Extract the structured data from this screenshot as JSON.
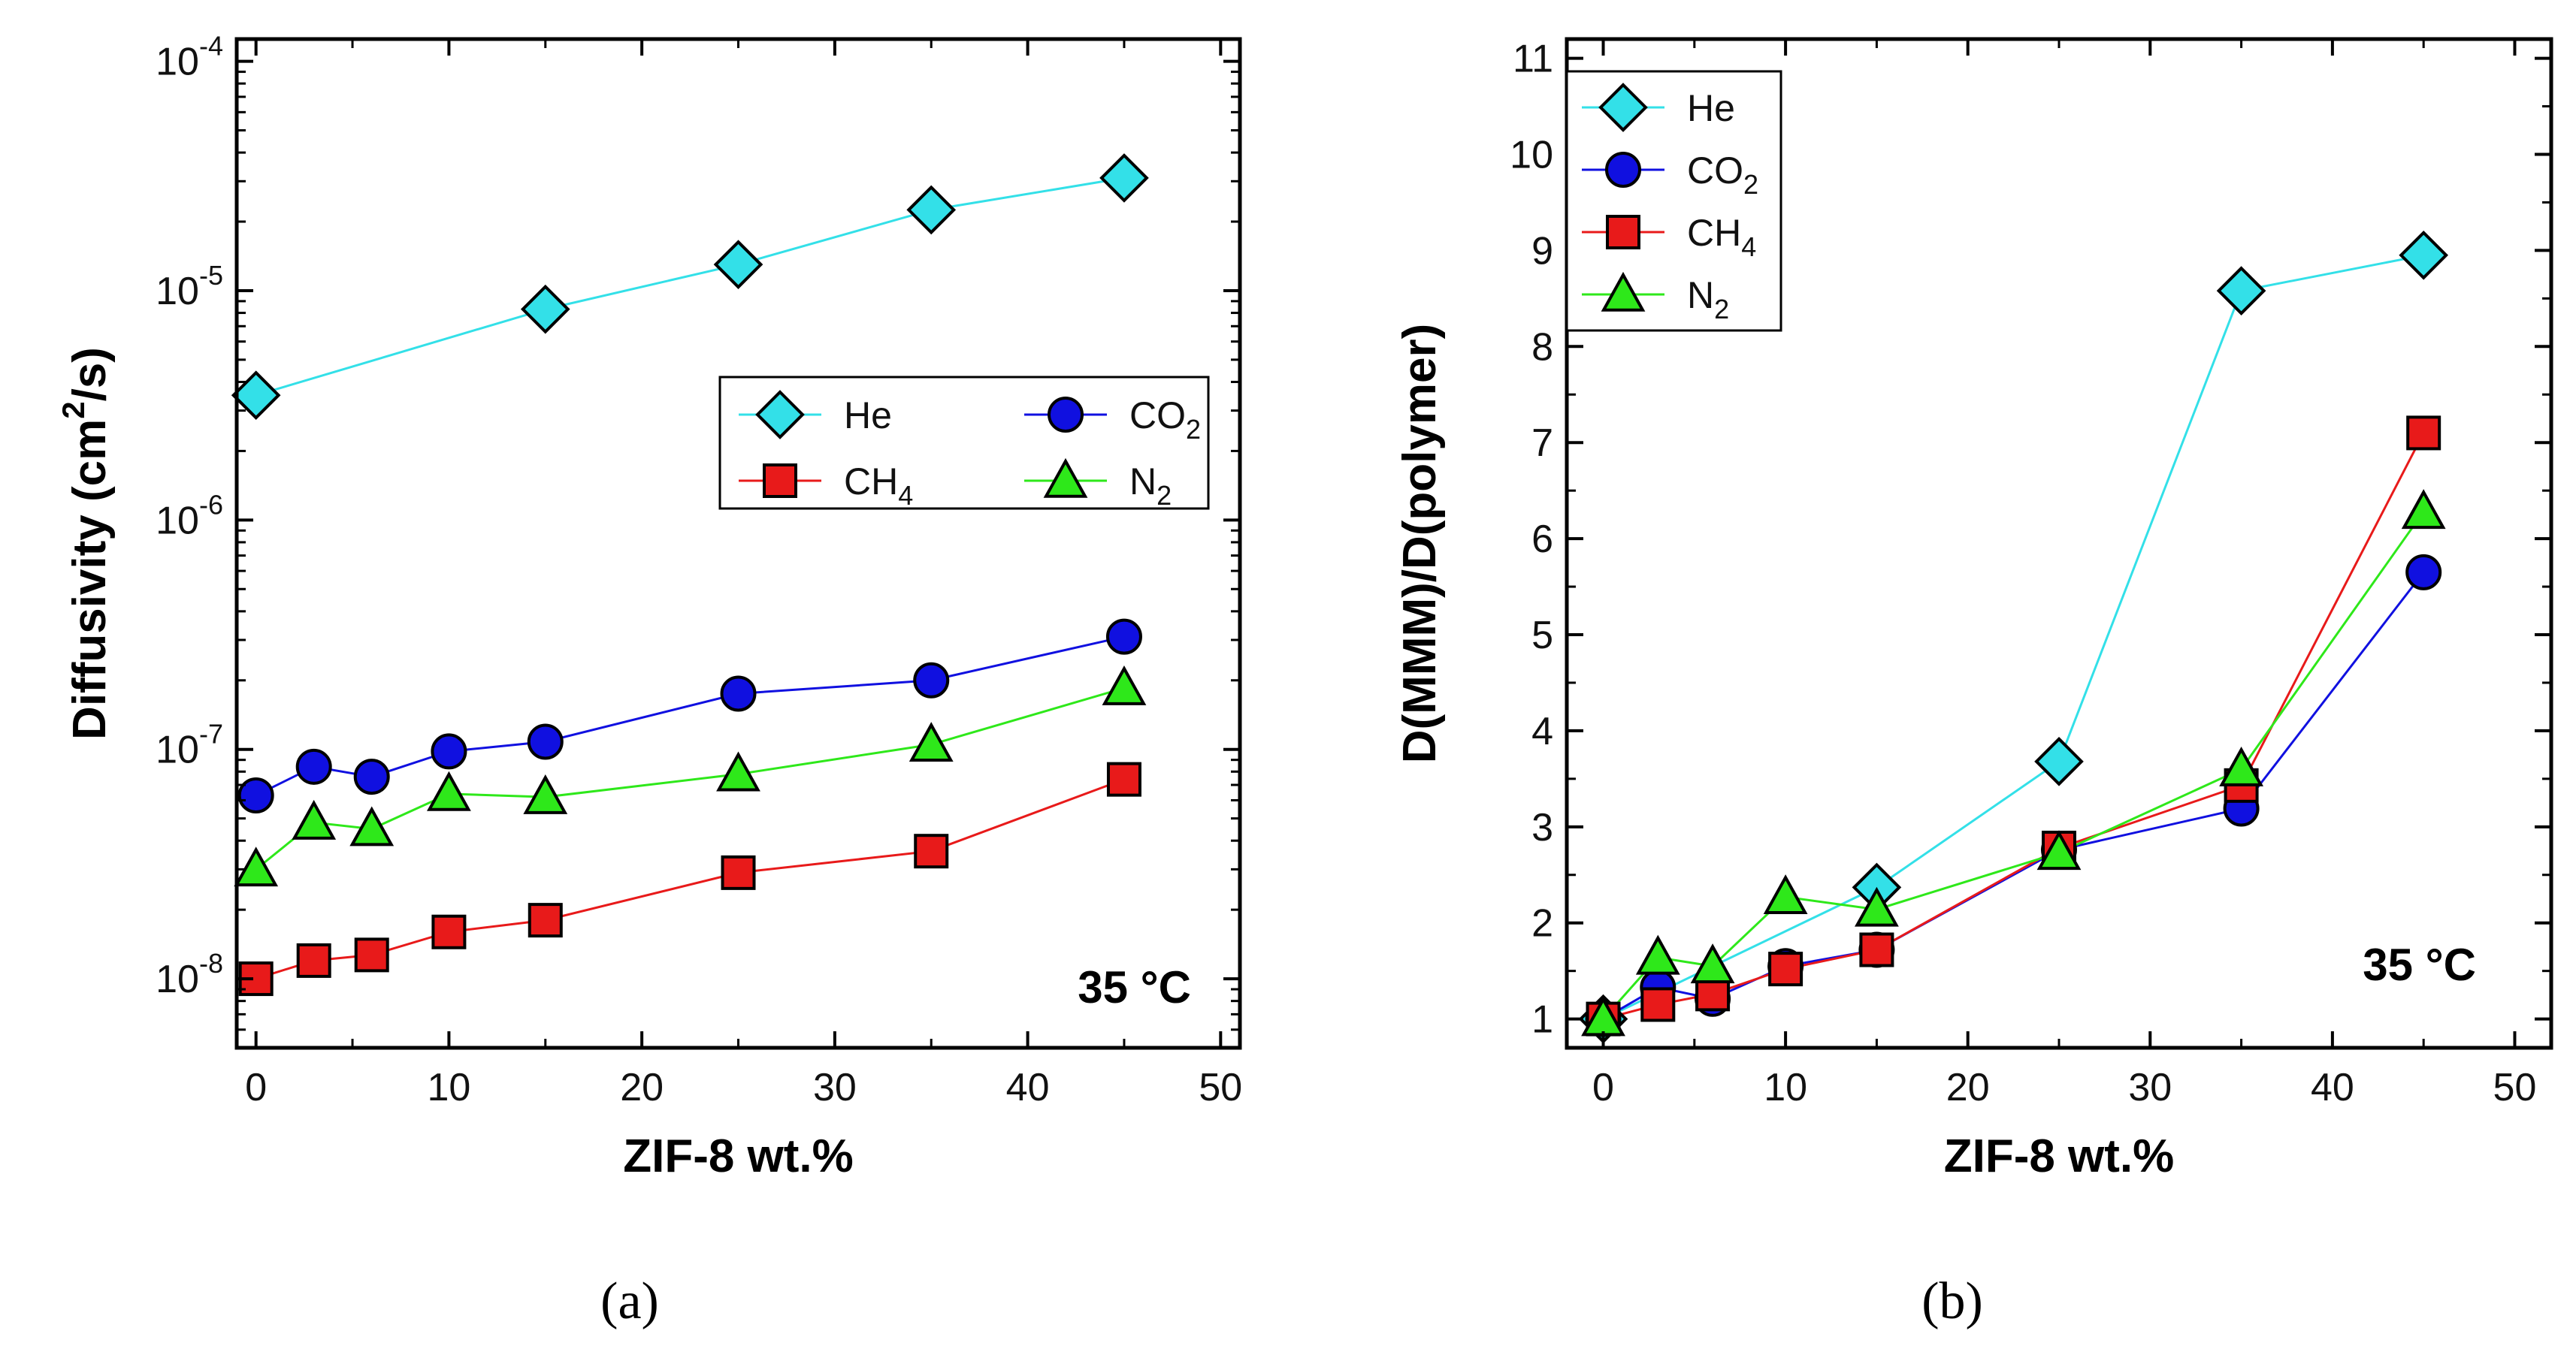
{
  "chart_data": [
    {
      "type": "line",
      "panel_label": "(a)",
      "xlabel": "ZIF-8 wt.%",
      "ylabel": "Diffusivity (cm²/s)",
      "ylabel_parts": {
        "base": "Diffusivity (cm",
        "sup": "2",
        "tail": "/s)"
      },
      "yscale": "log",
      "xlim": [
        -1,
        51
      ],
      "ylim": [
        5e-09,
        0.000125
      ],
      "xticks": [
        0,
        10,
        20,
        30,
        40,
        50
      ],
      "xtick_labels": [
        "0",
        "10",
        "20",
        "30",
        "40",
        "50"
      ],
      "yticks": [
        1e-08,
        1e-07,
        1e-06,
        1e-05,
        0.0001
      ],
      "ytick_labels": [
        {
          "base": "10",
          "exp": "-8"
        },
        {
          "base": "10",
          "exp": "-7"
        },
        {
          "base": "10",
          "exp": "-6"
        },
        {
          "base": "10",
          "exp": "-5"
        },
        {
          "base": "10",
          "exp": "-4"
        }
      ],
      "annotation": "35 °C",
      "legend_position": "center-right",
      "legend_columns": 2,
      "series": [
        {
          "name": "He",
          "name_base": "He",
          "name_sub": "",
          "color": "#33e0e8",
          "marker": "diamond",
          "x": [
            0,
            15,
            25,
            35,
            45
          ],
          "values": [
            3.5e-06,
            8.3e-06,
            1.3e-05,
            2.25e-05,
            3.1e-05
          ]
        },
        {
          "name": "CO2",
          "name_base": "CO",
          "name_sub": "2",
          "color": "#1010e0",
          "marker": "circle",
          "x": [
            0,
            3,
            6,
            10,
            15,
            25,
            35,
            45
          ],
          "values": [
            6.3e-08,
            8.4e-08,
            7.6e-08,
            9.8e-08,
            1.08e-07,
            1.75e-07,
            2e-07,
            3.1e-07
          ]
        },
        {
          "name": "CH4",
          "name_base": "CH",
          "name_sub": "4",
          "color": "#e81a1a",
          "marker": "square",
          "x": [
            0,
            3,
            6,
            10,
            15,
            25,
            35,
            45
          ],
          "values": [
            1e-08,
            1.2e-08,
            1.27e-08,
            1.6e-08,
            1.8e-08,
            2.9e-08,
            3.6e-08,
            7.4e-08
          ]
        },
        {
          "name": "N2",
          "name_base": "N",
          "name_sub": "2",
          "color": "#2ee81a",
          "marker": "triangle",
          "x": [
            0,
            3,
            6,
            10,
            15,
            25,
            35,
            45
          ],
          "values": [
            3e-08,
            4.8e-08,
            4.5e-08,
            6.4e-08,
            6.2e-08,
            7.8e-08,
            1.05e-07,
            1.85e-07
          ]
        }
      ]
    },
    {
      "type": "line",
      "panel_label": "(b)",
      "xlabel": "ZIF-8 wt.%",
      "ylabel": "D(MMM)/D(polymer)",
      "ylabel_parts": {
        "base": "D(MMM)/D(polymer)",
        "sup": "",
        "tail": ""
      },
      "yscale": "linear",
      "xlim": [
        -2,
        52
      ],
      "ylim": [
        0.7,
        11.2
      ],
      "xticks": [
        0,
        10,
        20,
        30,
        40,
        50
      ],
      "xtick_labels": [
        "0",
        "10",
        "20",
        "30",
        "40",
        "50"
      ],
      "yticks": [
        1,
        2,
        3,
        4,
        5,
        6,
        7,
        8,
        9,
        10,
        11
      ],
      "ytick_labels": [
        {
          "base": "1",
          "exp": ""
        },
        {
          "base": "2",
          "exp": ""
        },
        {
          "base": "3",
          "exp": ""
        },
        {
          "base": "4",
          "exp": ""
        },
        {
          "base": "5",
          "exp": ""
        },
        {
          "base": "6",
          "exp": ""
        },
        {
          "base": "7",
          "exp": ""
        },
        {
          "base": "8",
          "exp": ""
        },
        {
          "base": "9",
          "exp": ""
        },
        {
          "base": "10",
          "exp": ""
        },
        {
          "base": "11",
          "exp": ""
        }
      ],
      "annotation": "35 °C",
      "legend_position": "top-left",
      "legend_columns": 1,
      "series": [
        {
          "name": "He",
          "name_base": "He",
          "name_sub": "",
          "color": "#33e0e8",
          "marker": "diamond",
          "x": [
            0,
            15,
            25,
            35,
            45
          ],
          "values": [
            1.0,
            2.37,
            3.68,
            8.58,
            8.95
          ]
        },
        {
          "name": "CO2",
          "name_base": "CO",
          "name_sub": "2",
          "color": "#1010e0",
          "marker": "circle",
          "x": [
            0,
            3,
            6,
            10,
            15,
            25,
            35,
            45
          ],
          "values": [
            1.0,
            1.33,
            1.21,
            1.55,
            1.72,
            2.76,
            3.19,
            5.65
          ]
        },
        {
          "name": "CH4",
          "name_base": "CH",
          "name_sub": "4",
          "color": "#e81a1a",
          "marker": "square",
          "x": [
            0,
            3,
            6,
            10,
            15,
            25,
            35,
            45
          ],
          "values": [
            1.0,
            1.15,
            1.26,
            1.52,
            1.72,
            2.78,
            3.43,
            7.1
          ]
        },
        {
          "name": "N2",
          "name_base": "N",
          "name_sub": "2",
          "color": "#2ee81a",
          "marker": "triangle",
          "x": [
            0,
            3,
            6,
            10,
            15,
            25,
            35,
            45
          ],
          "values": [
            1.0,
            1.64,
            1.55,
            2.27,
            2.14,
            2.73,
            3.6,
            6.28
          ]
        }
      ]
    }
  ]
}
